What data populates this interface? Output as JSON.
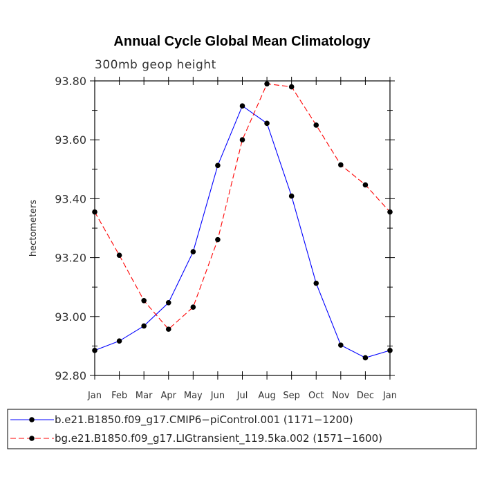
{
  "chart_data": {
    "type": "line",
    "title": "Annual Cycle Global Mean Climatology",
    "subtitle": "300mb geop height",
    "xlabel": "",
    "ylabel": "hectometers",
    "categories": [
      "Jan",
      "Feb",
      "Mar",
      "Apr",
      "May",
      "Jun",
      "Jul",
      "Aug",
      "Sep",
      "Oct",
      "Nov",
      "Dec",
      "Jan"
    ],
    "ylim": [
      92.8,
      93.8
    ],
    "yticks": [
      "92.80",
      "93.00",
      "93.20",
      "93.40",
      "93.60",
      "93.80"
    ],
    "series": [
      {
        "name": "b.e21.B1850.f09_g17.CMIP6−piControl.001 (1171−1200)",
        "color": "#0000ff",
        "dash": "solid",
        "values": [
          92.885,
          92.917,
          92.968,
          93.047,
          93.22,
          93.513,
          93.715,
          93.656,
          93.409,
          93.113,
          92.903,
          92.86,
          92.885
        ]
      },
      {
        "name": "bg.e21.B1850.f09_g17.LIGtransient_119.5ka.002 (1571−1600)",
        "color": "#ff0000",
        "dash": "dashed",
        "values": [
          93.355,
          93.208,
          93.054,
          92.957,
          93.032,
          93.261,
          93.6,
          93.79,
          93.78,
          93.65,
          93.515,
          93.447,
          93.355
        ]
      }
    ]
  }
}
